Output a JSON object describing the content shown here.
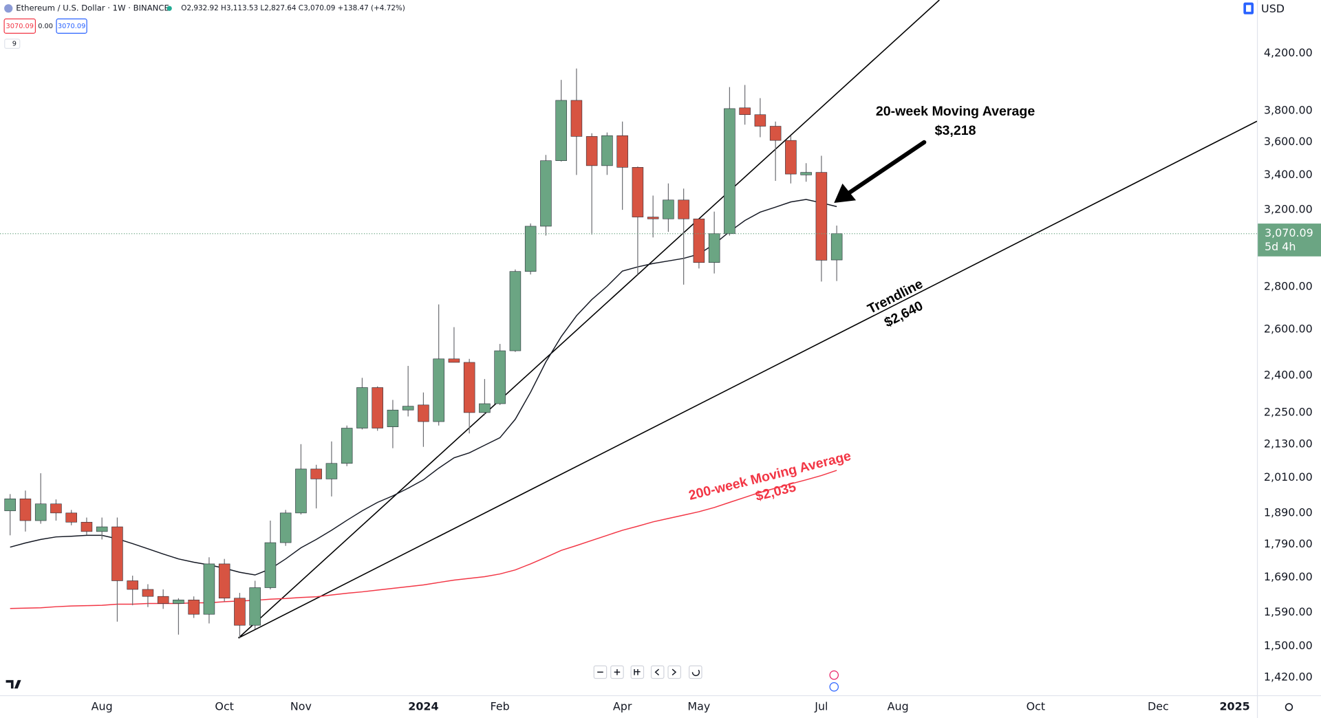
{
  "chart_data": {
    "type": "candlestick",
    "title": "Ethereum / U.S. Dollar · 1W · BINANCE",
    "ohlc_text": "O2,932.92 H3,113.53 L2,827.64 C3,070.09 +138.47 (+4.72%)",
    "quote_boxes": [
      "3070.09",
      "0.00",
      "3070.09"
    ],
    "indicator_count": "9",
    "currency": "USD",
    "last_price": {
      "label": "3,070.09",
      "countdown": "5d 4h"
    },
    "categories": [
      null,
      null,
      null,
      null,
      null,
      null,
      "Aug",
      null,
      null,
      null,
      null,
      null,
      null,
      null,
      "Oct",
      null,
      null,
      null,
      null,
      "Nov",
      null,
      null,
      null,
      null,
      null,
      null,
      null,
      "2024",
      null,
      null,
      null,
      null,
      "Feb",
      null,
      null,
      null,
      null,
      null,
      null,
      null,
      "Apr",
      null,
      null,
      null,
      null,
      "May",
      null,
      null,
      null,
      null,
      null,
      null,
      null,
      "Jul",
      null,
      null,
      null,
      null,
      "Aug",
      null,
      null,
      null,
      null,
      null,
      null,
      null,
      null,
      "Oct",
      null,
      null,
      null,
      null,
      null,
      null,
      null,
      "Dec",
      null,
      null,
      null,
      null,
      "2025"
    ],
    "open": [
      1897,
      1937,
      1865,
      1920,
      1890,
      1860,
      1830,
      1845,
      1680,
      1655,
      1635,
      1615,
      1625,
      1585,
      1730,
      1630,
      1555,
      1660,
      1795,
      1890,
      2040,
      2005,
      2060,
      2190,
      2350,
      2195,
      2260,
      2280,
      2215,
      2470,
      2455,
      2250,
      2285,
      2505,
      2875,
      3110,
      3485,
      3870,
      3635,
      3455,
      3640,
      3445,
      3160,
      3150,
      3255,
      3150,
      2920,
      3070,
      3820,
      3775,
      3700,
      3610,
      3400,
      3415,
      2932.92,
      null,
      null,
      null,
      null,
      null,
      null,
      null,
      null,
      null,
      null,
      null,
      null,
      null,
      null,
      null,
      null,
      null,
      null,
      null,
      null,
      null,
      null,
      null,
      null,
      null,
      null
    ],
    "high": [
      1953,
      1965,
      2025,
      1935,
      1900,
      1875,
      1875,
      1875,
      1695,
      1670,
      1655,
      1630,
      1635,
      1750,
      1745,
      1645,
      1680,
      1865,
      1900,
      2130,
      2055,
      2140,
      2200,
      2390,
      2355,
      2300,
      2440,
      2330,
      2715,
      2610,
      2470,
      2385,
      2535,
      2885,
      3125,
      3520,
      4010,
      4090,
      3655,
      3660,
      3730,
      3450,
      3280,
      3350,
      3320,
      3150,
      3190,
      3960,
      3975,
      3885,
      3730,
      3640,
      3470,
      3515,
      3113.53,
      null,
      null,
      null,
      null,
      null,
      null,
      null,
      null,
      null,
      null,
      null,
      null,
      null,
      null,
      null,
      null,
      null,
      null,
      null,
      null,
      null,
      null,
      null,
      null,
      null,
      null
    ],
    "low": [
      1818,
      1830,
      1855,
      1865,
      1850,
      1820,
      1805,
      1565,
      1610,
      1605,
      1600,
      1530,
      1575,
      1560,
      1620,
      1520,
      1545,
      1655,
      1785,
      1885,
      1905,
      1945,
      2050,
      2185,
      2180,
      2115,
      2235,
      2120,
      2200,
      2455,
      2170,
      2240,
      2280,
      2500,
      2860,
      3060,
      3480,
      3400,
      3065,
      3400,
      3200,
      2860,
      3050,
      3080,
      2810,
      2890,
      2865,
      3060,
      3710,
      3630,
      3365,
      3350,
      3360,
      2825,
      2827.64,
      null,
      null,
      null,
      null,
      null,
      null,
      null,
      null,
      null,
      null,
      null,
      null,
      null,
      null,
      null,
      null,
      null,
      null,
      null,
      null,
      null,
      null,
      null,
      null,
      null,
      null
    ],
    "close": [
      1937,
      1865,
      1920,
      1890,
      1860,
      1830,
      1845,
      1680,
      1655,
      1635,
      1615,
      1625,
      1585,
      1730,
      1630,
      1555,
      1660,
      1795,
      1890,
      2040,
      2005,
      2060,
      2190,
      2350,
      2190,
      2260,
      2275,
      2215,
      2470,
      2455,
      2250,
      2285,
      2505,
      2875,
      3110,
      3485,
      3870,
      3635,
      3455,
      3640,
      3445,
      3160,
      3150,
      3255,
      3150,
      2920,
      3070,
      3815,
      3775,
      3700,
      3610,
      3405,
      3415,
      2931.62,
      3070.09,
      null,
      null,
      null,
      null,
      null,
      null,
      null,
      null,
      null,
      null,
      null,
      null,
      null,
      null,
      null,
      null,
      null,
      null,
      null,
      null,
      null,
      null,
      null,
      null,
      null,
      null
    ],
    "up_color": "#6ba583",
    "down_color": "#d75442",
    "series": [
      {
        "color": "#131722",
        "values": [
          1781,
          1794,
          1805,
          1813,
          1815,
          1818,
          1818,
          1807,
          1792,
          1776,
          1760,
          1745,
          1735,
          1727,
          1717,
          1705,
          1697,
          1715,
          1745,
          1779,
          1805,
          1834,
          1866,
          1897,
          1925,
          1947,
          1973,
          2002,
          2043,
          2080,
          2098,
          2126,
          2154,
          2224,
          2331,
          2457,
          2567,
          2662,
          2738,
          2802,
          2877,
          2898,
          2915,
          2928,
          2941,
          2963,
          3015,
          3081,
          3141,
          3187,
          3215,
          3244,
          3258,
          3239,
          3218,
          null,
          null,
          null,
          null,
          null,
          null,
          null,
          null,
          null,
          null,
          null,
          null,
          null,
          null,
          null,
          null,
          null,
          null,
          null,
          null,
          null,
          null,
          null,
          null,
          null,
          null
        ]
      },
      {
        "color": "#f23645",
        "values": [
          1601,
          1602,
          1603,
          1606,
          1608,
          1609,
          1610,
          1613,
          1613,
          1615,
          1615,
          1615,
          1617,
          1617,
          1620,
          1622,
          1624,
          1627,
          1629,
          1632,
          1634,
          1639,
          1644,
          1648,
          1653,
          1658,
          1663,
          1668,
          1675,
          1682,
          1687,
          1692,
          1700,
          1712,
          1730,
          1750,
          1771,
          1786,
          1802,
          1818,
          1834,
          1847,
          1861,
          1872,
          1883,
          1894,
          1908,
          1925,
          1942,
          1959,
          1973,
          1988,
          2002,
          2017,
          2035,
          null,
          null,
          null,
          null,
          null,
          null,
          null,
          null,
          null,
          null,
          null,
          null,
          null,
          null,
          null,
          null,
          null,
          null,
          null,
          null,
          null,
          null,
          null,
          null,
          null,
          null
        ]
      }
    ],
    "log_scale": true,
    "grid": false,
    "ylim": [
      1377,
      4607
    ],
    "yticks": [
      {
        "value": 1420,
        "label": "1,420.00"
      },
      {
        "value": 1500,
        "label": "1,500.00"
      },
      {
        "value": 1590,
        "label": "1,590.00"
      },
      {
        "value": 1690,
        "label": "1,690.00"
      },
      {
        "value": 1790,
        "label": "1,790.00"
      },
      {
        "value": 1890,
        "label": "1,890.00"
      },
      {
        "value": 2010,
        "label": "2,010.00"
      },
      {
        "value": 2130,
        "label": "2,130.00"
      },
      {
        "value": 2250,
        "label": "2,250.00"
      },
      {
        "value": 2400,
        "label": "2,400.00"
      },
      {
        "value": 2600,
        "label": "2,600.00"
      },
      {
        "value": 2800,
        "label": "2,800.00"
      },
      {
        "value": 3200,
        "label": "3,200.00"
      },
      {
        "value": 3400,
        "label": "3,400.00"
      },
      {
        "value": 3600,
        "label": "3,600.00"
      },
      {
        "value": 3800,
        "label": "3,800.00"
      },
      {
        "value": 4200,
        "label": "4,200.00"
      }
    ],
    "annotations": [
      "20-week Moving Average",
      "$3,218",
      "Trendline",
      "$2,640",
      "200-week Moving Average",
      "$2,035"
    ]
  }
}
